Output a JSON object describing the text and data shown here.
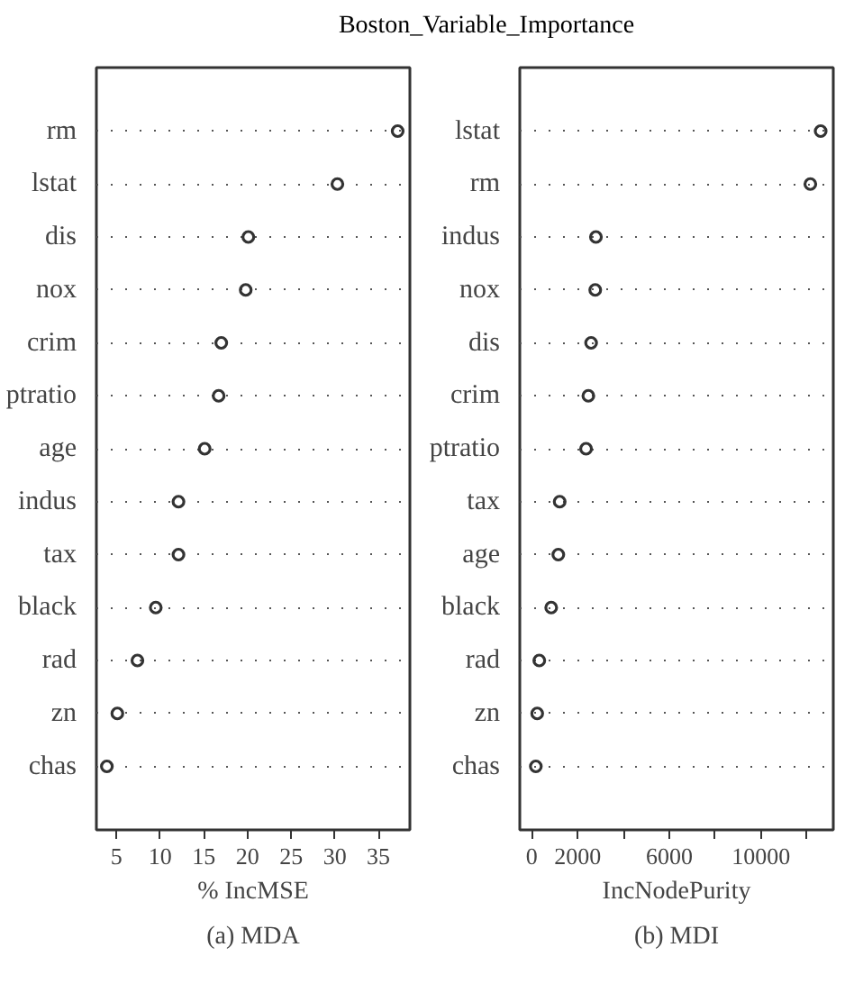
{
  "chart_data": [
    {
      "type": "scatter",
      "title": "Boston_Variable_Importance",
      "xlabel": "% IncMSE",
      "annotations": [
        "(a) MDA"
      ],
      "categories": [
        "rm",
        "lstat",
        "dis",
        "nox",
        "crim",
        "ptratio",
        "age",
        "indus",
        "tax",
        "black",
        "rad",
        "zn",
        "chas"
      ],
      "series": [
        {
          "color": "#333333",
          "values": [
            37.2,
            30.3,
            20.1,
            19.8,
            17.0,
            16.7,
            15.1,
            12.1,
            12.1,
            9.5,
            7.4,
            5.1,
            3.9
          ]
        }
      ],
      "xlim": [
        2.7,
        38.6
      ],
      "xticks": [
        5,
        10,
        15,
        20,
        25,
        30,
        35
      ],
      "grid": "y",
      "marker": "circle",
      "orientation": "horizontal"
    },
    {
      "type": "scatter",
      "xlabel": "IncNodePurity",
      "annotations": [
        "(b) MDI"
      ],
      "categories": [
        "lstat",
        "rm",
        "indus",
        "nox",
        "dis",
        "crim",
        "ptratio",
        "tax",
        "age",
        "black",
        "rad",
        "zn",
        "chas"
      ],
      "series": [
        {
          "color": "#333333",
          "values": [
            12600,
            12150,
            2800,
            2770,
            2590,
            2470,
            2370,
            1220,
            1160,
            850,
            330,
            240,
            180
          ]
        }
      ],
      "xlim": [
        -520,
        13150
      ],
      "xticks": [
        0,
        2000,
        {
          "value": 4000,
          "label": null
        },
        6000,
        {
          "value": 8000,
          "label": null
        },
        10000,
        {
          "value": 12000,
          "label": null
        }
      ],
      "grid": "y",
      "marker": "circle",
      "orientation": "horizontal"
    }
  ]
}
